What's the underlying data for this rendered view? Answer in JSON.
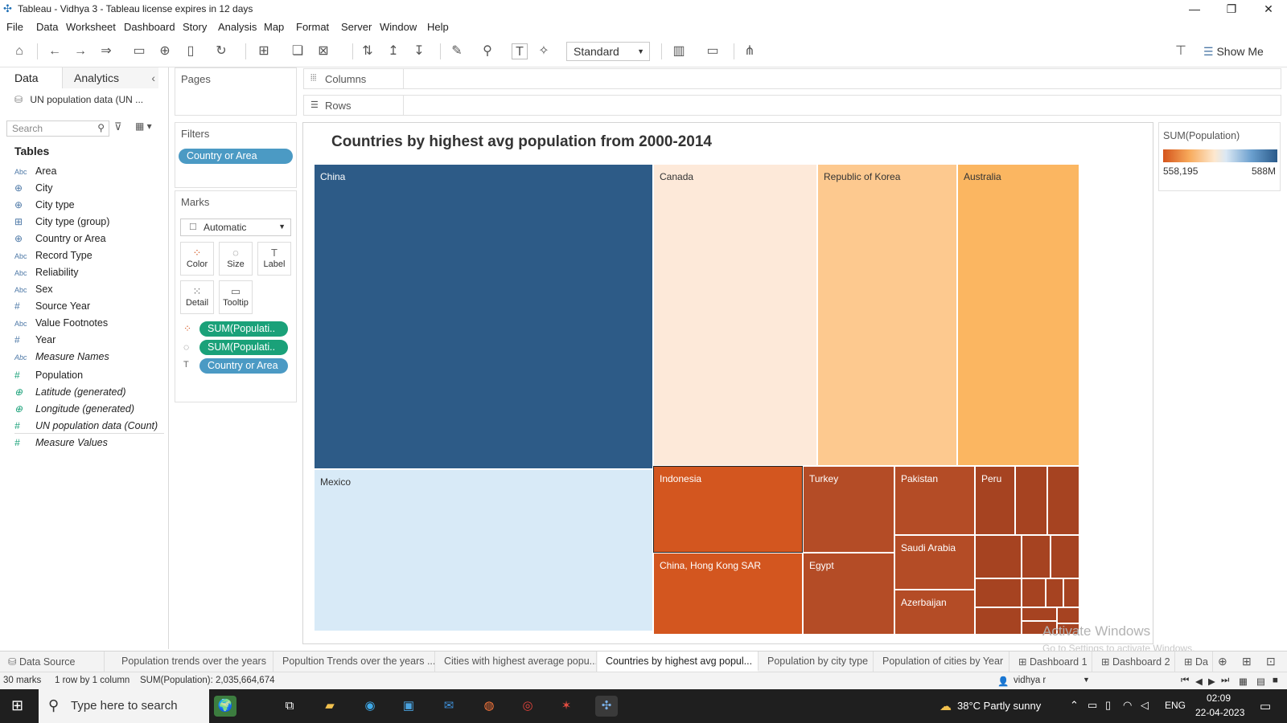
{
  "window": {
    "title": "Tableau - Vidhya 3 - Tableau license expires in 12 days"
  },
  "menu": [
    "File",
    "Data",
    "Worksheet",
    "Dashboard",
    "Story",
    "Analysis",
    "Map",
    "Format",
    "Server",
    "Window",
    "Help"
  ],
  "toolbar": {
    "fit_select": "Standard",
    "show_me": "Show Me"
  },
  "data_pane": {
    "tab_data": "Data",
    "tab_analytics": "Analytics",
    "datasource": "UN population data (UN ...",
    "search_placeholder": "Search",
    "tables_label": "Tables",
    "fields": [
      {
        "icon": "Abc",
        "name": "Area",
        "italic": false
      },
      {
        "icon": "globe",
        "name": "City",
        "italic": false
      },
      {
        "icon": "globe",
        "name": "City type",
        "italic": false
      },
      {
        "icon": "group",
        "name": "City type (group)",
        "italic": false
      },
      {
        "icon": "globe",
        "name": "Country or Area",
        "italic": false
      },
      {
        "icon": "Abc",
        "name": "Record Type",
        "italic": false
      },
      {
        "icon": "Abc",
        "name": "Reliability",
        "italic": false
      },
      {
        "icon": "Abc",
        "name": "Sex",
        "italic": false
      },
      {
        "icon": "#",
        "name": "Source Year",
        "italic": false
      },
      {
        "icon": "Abc",
        "name": "Value Footnotes",
        "italic": false
      },
      {
        "icon": "#",
        "name": "Year",
        "italic": false
      },
      {
        "icon": "Abc",
        "name": "Measure Names",
        "italic": true
      },
      {
        "icon": "#",
        "name": "Population",
        "italic": false
      },
      {
        "icon": "globe",
        "name": "Latitude (generated)",
        "italic": true
      },
      {
        "icon": "globe",
        "name": "Longitude (generated)",
        "italic": true
      },
      {
        "icon": "#",
        "name": "UN population data (Count)",
        "italic": true
      },
      {
        "icon": "#",
        "name": "Measure Values",
        "italic": true
      }
    ]
  },
  "cards": {
    "pages": "Pages",
    "filters": "Filters",
    "filter_pill": "Country or Area",
    "marks": "Marks",
    "mark_type": "Automatic",
    "mark_buttons": [
      "Color",
      "Size",
      "Label",
      "Detail",
      "Tooltip"
    ],
    "mark_pills": [
      "SUM(Populati..",
      "SUM(Populati..",
      "Country or Area"
    ]
  },
  "shelves": {
    "columns": "Columns",
    "rows": "Rows"
  },
  "viz": {
    "title": "Countries by highest avg population from 2000-2014",
    "legend_title": "SUM(Population)",
    "legend_min": "558,195",
    "legend_max": "588M",
    "colors": {
      "china": "#2d5b87",
      "mexico": "#d8eaf7",
      "canada": "#fde9d9",
      "korea": "#fdc98f",
      "australia": "#fbb661",
      "orange": "#d3561f",
      "rust": "#b44c26",
      "deep": "#a64321"
    },
    "labels": [
      "China",
      "Canada",
      "Republic of Korea",
      "Australia",
      "Mexico",
      "Indonesia",
      "Turkey",
      "Pakistan",
      "Peru",
      "Saudi Arabia",
      "China, Hong Kong SAR",
      "Egypt",
      "Azerbaijan"
    ]
  },
  "sheet_tabs": [
    "Data Source",
    "Population trends over the years",
    "Popultion Trends over the years ...",
    "Cities with highest average popu...",
    "Countries by highest avg popul...",
    "Population by city type",
    "Population of cities by Year",
    "Dashboard 1",
    "Dashboard 2",
    "Da"
  ],
  "status": {
    "marks": "30 marks",
    "rows": "1 row by 1 column",
    "sum": "SUM(Population): 2,035,664,674",
    "user": "vidhya r"
  },
  "taskbar": {
    "search": "Type here to search",
    "weather": "38°C  Partly sunny",
    "lang": "ENG",
    "time": "02:09",
    "date": "22-04-2023"
  },
  "watermark": {
    "line1": "Activate Windows",
    "line2": "Go to Settings to activate Windows."
  }
}
